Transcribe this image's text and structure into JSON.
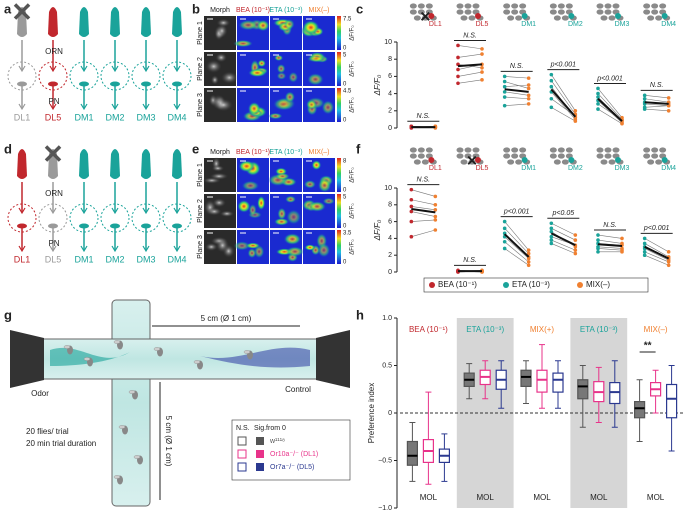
{
  "panel_labels": [
    "a",
    "b",
    "c",
    "d",
    "e",
    "f",
    "g",
    "h"
  ],
  "panel_a": {
    "orn": "ORN",
    "pn": "PN",
    "glomeruli": [
      "DL1",
      "DL5",
      "DM1",
      "DM2",
      "DM3",
      "DM4"
    ],
    "colors": [
      "#9a9a9a",
      "#c1272d",
      "#1aa39a",
      "#1aa39a",
      "#1aa39a",
      "#1aa39a"
    ],
    "knocked_out": "DL1"
  },
  "panel_d": {
    "orn": "ORN",
    "pn": "PN",
    "glomeruli": [
      "DL1",
      "DL5",
      "DM1",
      "DM2",
      "DM3",
      "DM4"
    ],
    "colors": [
      "#c1272d",
      "#9a9a9a",
      "#1aa39a",
      "#1aa39a",
      "#1aa39a",
      "#1aa39a"
    ],
    "knocked_out": "DL5"
  },
  "panel_b": {
    "columns": [
      "Morph",
      "BEA (10⁻¹)",
      "ETA (10⁻³)",
      "MIX(–)"
    ],
    "column_colors": [
      "#222",
      "#c1272d",
      "#1aa39a",
      "#f08030"
    ],
    "rows": [
      "Plane 1",
      "Plane 2",
      "Plane 3"
    ],
    "colorbar_label": "ΔF/F₀",
    "colorbar_max": [
      "7.5",
      "5",
      "4.5"
    ],
    "colorbar_min": "0"
  },
  "panel_e": {
    "columns": [
      "Morph",
      "BEA (10⁻¹)",
      "ETA (10⁻³)",
      "MIX(–)"
    ],
    "column_colors": [
      "#222",
      "#c1272d",
      "#1aa39a",
      "#f08030"
    ],
    "rows": [
      "Plane 1",
      "Plane 2",
      "Plane 3"
    ],
    "colorbar_label": "ΔF/F₀",
    "colorbar_max": [
      "8",
      "5",
      "3.5"
    ],
    "colorbar_min": "0"
  },
  "legend_cf": [
    {
      "name": "BEA (10⁻¹)",
      "color": "#c1272d"
    },
    {
      "name": "ETA (10⁻³)",
      "color": "#1aa39a"
    },
    {
      "name": "MIX(–)",
      "color": "#f08030"
    }
  ],
  "panel_g": {
    "horizontal_size": "5 cm (Ø 1 cm)",
    "vertical_size": "5 cm (Ø 1 cm)",
    "odor": "Odor",
    "control": "Control",
    "flies": "20 flies/ trial",
    "duration": "20 min trial duration",
    "legend_ns": "N.S.",
    "legend_sig": "Sig.from 0"
  },
  "chart_data": [
    {
      "type": "paired",
      "ylabel": "ΔF/F₀",
      "ylim": [
        0,
        10
      ],
      "yticks": [
        0,
        2,
        4,
        6,
        8,
        10
      ],
      "after_color": "#f08030",
      "groups": [
        {
          "name": "DL1",
          "annotation": "N.S.",
          "color": "#c1272d",
          "knocked_out": true,
          "before": [
            0.1,
            0.2,
            0.1,
            0.0,
            0.2,
            0.1
          ],
          "after": [
            0.1,
            0.1,
            0.2,
            0.0,
            0.1,
            0.2
          ],
          "mean": [
            0.1,
            0.1
          ]
        },
        {
          "name": "DL5",
          "annotation": "N.S.",
          "color": "#c1272d",
          "knocked_out": false,
          "before": [
            9.6,
            8.2,
            7.4,
            6.8,
            6.0,
            5.2
          ],
          "after": [
            9.2,
            8.6,
            7.0,
            7.4,
            6.5,
            5.6
          ],
          "mean": [
            7.2,
            7.4
          ]
        },
        {
          "name": "DM1",
          "annotation": "N.S.",
          "color": "#1aa39a",
          "knocked_out": false,
          "before": [
            6.0,
            5.4,
            4.8,
            4.2,
            3.6,
            2.6
          ],
          "after": [
            5.8,
            4.6,
            5.0,
            3.8,
            3.4,
            2.8
          ],
          "mean": [
            4.5,
            4.2
          ]
        },
        {
          "name": "DM2",
          "annotation": "p<0.001",
          "color": "#1aa39a",
          "knocked_out": false,
          "before": [
            6.2,
            5.5,
            4.8,
            4.2,
            3.4,
            2.4
          ],
          "after": [
            2.0,
            1.6,
            1.2,
            1.0,
            1.4,
            0.8
          ],
          "mean": [
            4.5,
            1.3
          ]
        },
        {
          "name": "DM3",
          "annotation": "p<0.001",
          "color": "#1aa39a",
          "knocked_out": false,
          "before": [
            4.6,
            4.0,
            3.6,
            3.2,
            2.8,
            2.2
          ],
          "after": [
            1.2,
            1.0,
            0.8,
            0.6,
            0.9,
            0.5
          ],
          "mean": [
            3.4,
            0.8
          ]
        },
        {
          "name": "DM4",
          "annotation": "N.S.",
          "color": "#1aa39a",
          "knocked_out": false,
          "before": [
            3.8,
            3.4,
            3.0,
            2.8,
            2.4,
            2.2
          ],
          "after": [
            3.5,
            3.0,
            2.8,
            2.6,
            2.6,
            2.0
          ],
          "mean": [
            3.0,
            2.8
          ]
        }
      ]
    },
    {
      "type": "paired",
      "ylabel": "ΔF/F₀",
      "ylim": [
        0,
        10
      ],
      "yticks": [
        0,
        2,
        4,
        6,
        8,
        10
      ],
      "after_color": "#f08030",
      "groups": [
        {
          "name": "DL1",
          "annotation": "N.S.",
          "color": "#c1272d",
          "knocked_out": false,
          "before": [
            9.8,
            8.6,
            7.8,
            7.2,
            6.0,
            4.2
          ],
          "after": [
            9.0,
            8.0,
            7.4,
            6.6,
            6.2,
            5.0
          ],
          "mean": [
            7.5,
            7.1
          ]
        },
        {
          "name": "DL5",
          "annotation": "N.S.",
          "color": "#c1272d",
          "knocked_out": true,
          "before": [
            0.1,
            0.0,
            0.2,
            0.1,
            0.1,
            0.0
          ],
          "after": [
            0.0,
            0.1,
            0.1,
            0.2,
            0.0,
            0.1
          ],
          "mean": [
            0.1,
            0.1
          ]
        },
        {
          "name": "DM1",
          "annotation": "p<0.001",
          "color": "#1aa39a",
          "knocked_out": false,
          "before": [
            6.0,
            5.2,
            4.6,
            4.2,
            3.6,
            2.8
          ],
          "after": [
            2.6,
            2.2,
            1.8,
            1.6,
            1.2,
            0.8
          ],
          "mean": [
            4.5,
            1.8
          ]
        },
        {
          "name": "DM2",
          "annotation": "p<0.05",
          "color": "#1aa39a",
          "knocked_out": false,
          "before": [
            5.8,
            5.2,
            4.8,
            4.2,
            3.8,
            3.4
          ],
          "after": [
            4.4,
            3.8,
            3.0,
            3.2,
            2.6,
            2.2
          ],
          "mean": [
            4.6,
            3.2
          ]
        },
        {
          "name": "DM3",
          "annotation": "N.S.",
          "color": "#1aa39a",
          "knocked_out": false,
          "before": [
            4.4,
            3.8,
            3.4,
            3.0,
            2.8,
            2.4
          ],
          "after": [
            4.0,
            3.4,
            3.2,
            2.8,
            2.6,
            2.4
          ],
          "mean": [
            3.3,
            3.1
          ]
        },
        {
          "name": "DM4",
          "annotation": "p<0.001",
          "color": "#1aa39a",
          "knocked_out": false,
          "before": [
            4.0,
            3.4,
            3.0,
            2.8,
            2.4,
            2.0
          ],
          "after": [
            2.4,
            1.8,
            1.6,
            1.4,
            1.2,
            0.8
          ],
          "mean": [
            3.0,
            1.6
          ]
        }
      ]
    },
    {
      "type": "box",
      "ylabel": "Preference index",
      "ylim": [
        -1,
        1
      ],
      "yticks": [
        {
          "value": -1,
          "label": "−1.0"
        },
        {
          "value": -0.5,
          "label": "−0.5"
        },
        0,
        {
          "value": 0.5,
          "label": "0.5"
        },
        {
          "value": 1,
          "label": "1.0"
        }
      ],
      "categories": [
        "BEA (10⁻¹)",
        "ETA (10⁻³)",
        "MIX(+)",
        "ETA (10⁻³)",
        "MIX(–)"
      ],
      "category_colors": [
        "#c1272d",
        "#1aa39a",
        "#f08030",
        "#1aa39a",
        "#f08030"
      ],
      "shaded": [
        false,
        true,
        false,
        true,
        false
      ],
      "sublabel": "MOL",
      "category_annotations": [
        null,
        null,
        null,
        null,
        "**"
      ],
      "series": [
        {
          "name": "w¹¹¹⁸",
          "color": "#555555",
          "values": [
            [
              -0.72,
              -0.55,
              -0.45,
              -0.3,
              -0.1
            ],
            [
              0.15,
              0.28,
              0.35,
              0.42,
              0.52
            ],
            [
              0.1,
              0.28,
              0.38,
              0.45,
              0.55
            ],
            [
              -0.15,
              0.15,
              0.28,
              0.35,
              0.5
            ],
            [
              -0.3,
              -0.05,
              0.05,
              0.12,
              0.35
            ]
          ]
        },
        {
          "name": "Or10a⁻/⁻ (DL1)",
          "color": "#e8338a",
          "values": [
            [
              -0.75,
              -0.52,
              -0.4,
              -0.28,
              0.22
            ],
            [
              0.15,
              0.3,
              0.38,
              0.45,
              0.55
            ],
            [
              0.05,
              0.22,
              0.35,
              0.45,
              0.72
            ],
            [
              -0.1,
              0.12,
              0.22,
              0.33,
              0.48
            ],
            [
              0.0,
              0.18,
              0.25,
              0.32,
              0.45
            ]
          ]
        },
        {
          "name": "Or7a⁻/⁻ (DL5)",
          "color": "#2b3990",
          "values": [
            [
              -0.72,
              -0.52,
              -0.45,
              -0.38,
              -0.22
            ],
            [
              0.05,
              0.25,
              0.35,
              0.45,
              0.55
            ],
            [
              0.05,
              0.22,
              0.35,
              0.42,
              0.55
            ],
            [
              -0.15,
              0.1,
              0.22,
              0.32,
              0.55
            ],
            [
              -0.4,
              -0.05,
              0.15,
              0.3,
              0.5
            ]
          ]
        }
      ]
    }
  ]
}
